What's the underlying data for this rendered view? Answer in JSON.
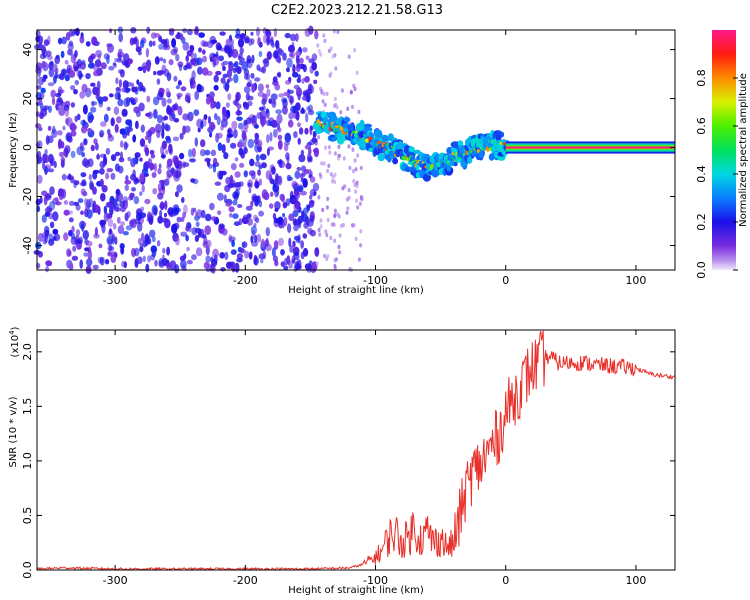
{
  "title": "C2E2.2023.212.21.58.G13",
  "colors": {
    "snr_line": "#e8302a",
    "axis": "#000000",
    "background": "#ffffff"
  },
  "chart_data": [
    {
      "type": "heatmap",
      "title": "C2E2.2023.212.21.58.G13",
      "xlabel": "Height of straight line (km)",
      "ylabel": "Frequency (Hz)",
      "xlim": [
        -360,
        130
      ],
      "ylim": [
        -50,
        48
      ],
      "xticks": [
        -300,
        -200,
        -100,
        0,
        100
      ],
      "yticks": [
        -40,
        -20,
        0,
        20,
        40
      ],
      "colormap": "rainbow (purple → blue → cyan → green → yellow → red → magenta)",
      "colorbar": {
        "label": "Normalized spectral amplitude",
        "range": [
          0.0,
          1.0
        ],
        "ticks": [
          0.0,
          0.2,
          0.4,
          0.6,
          0.8
        ]
      },
      "noise_region": {
        "x_range": [
          -360,
          -145
        ],
        "y_range": [
          -50,
          48
        ],
        "amplitude": [
          0.1,
          0.3
        ]
      },
      "sparse_noise_region": {
        "x_range": [
          -145,
          -110
        ],
        "amplitude": [
          0.05,
          0.15
        ]
      },
      "signal_ridge": [
        {
          "x": -145,
          "y": 10,
          "amplitude": 0.55
        },
        {
          "x": -130,
          "y": 8,
          "amplitude": 0.65
        },
        {
          "x": -115,
          "y": 6,
          "amplitude": 0.6
        },
        {
          "x": -100,
          "y": 2,
          "amplitude": 0.55
        },
        {
          "x": -90,
          "y": 0,
          "amplitude": 0.5
        },
        {
          "x": -80,
          "y": -3,
          "amplitude": 0.55
        },
        {
          "x": -70,
          "y": -6,
          "amplitude": 0.6
        },
        {
          "x": -60,
          "y": -8,
          "amplitude": 0.55
        },
        {
          "x": -50,
          "y": -6,
          "amplitude": 0.65
        },
        {
          "x": -40,
          "y": -4,
          "amplitude": 0.7
        },
        {
          "x": -30,
          "y": -2,
          "amplitude": 0.75
        },
        {
          "x": -20,
          "y": 0,
          "amplitude": 0.8
        },
        {
          "x": -10,
          "y": 1,
          "amplitude": 0.85
        },
        {
          "x": 0,
          "y": 1,
          "amplitude": 0.85
        },
        {
          "x": 130,
          "y": 0,
          "amplitude": 0.95
        }
      ]
    },
    {
      "type": "line",
      "xlabel": "Height of straight line (km)",
      "ylabel": "SNR (10 * v/v)",
      "y_multiplier_label": "(x10",
      "y_multiplier_exponent": "4",
      "y_multiplier_close": ")",
      "xlim": [
        -360,
        130
      ],
      "ylim": [
        0.0,
        2.2
      ],
      "xticks": [
        -300,
        -200,
        -100,
        0,
        100
      ],
      "yticks": [
        0.0,
        0.5,
        1.0,
        1.5,
        2.0
      ],
      "x": [
        -360,
        -340,
        -300,
        -250,
        -200,
        -150,
        -120,
        -110,
        -100,
        -95,
        -90,
        -85,
        -80,
        -75,
        -70,
        -65,
        -60,
        -55,
        -50,
        -45,
        -40,
        -35,
        -30,
        -25,
        -20,
        -15,
        -10,
        -5,
        0,
        5,
        10,
        15,
        20,
        25,
        30,
        35,
        40,
        50,
        60,
        70,
        80,
        90,
        100,
        110,
        120,
        130
      ],
      "y": [
        0.01,
        0.02,
        0.01,
        0.01,
        0.01,
        0.01,
        0.02,
        0.05,
        0.12,
        0.18,
        0.3,
        0.35,
        0.25,
        0.3,
        0.4,
        0.28,
        0.35,
        0.25,
        0.3,
        0.2,
        0.25,
        0.5,
        0.75,
        0.9,
        0.95,
        1.05,
        1.15,
        1.25,
        1.45,
        1.55,
        1.65,
        1.75,
        1.85,
        1.9,
        1.95,
        1.95,
        1.9,
        1.9,
        1.9,
        1.88,
        1.87,
        1.86,
        1.85,
        1.8,
        1.78,
        1.77
      ]
    }
  ]
}
